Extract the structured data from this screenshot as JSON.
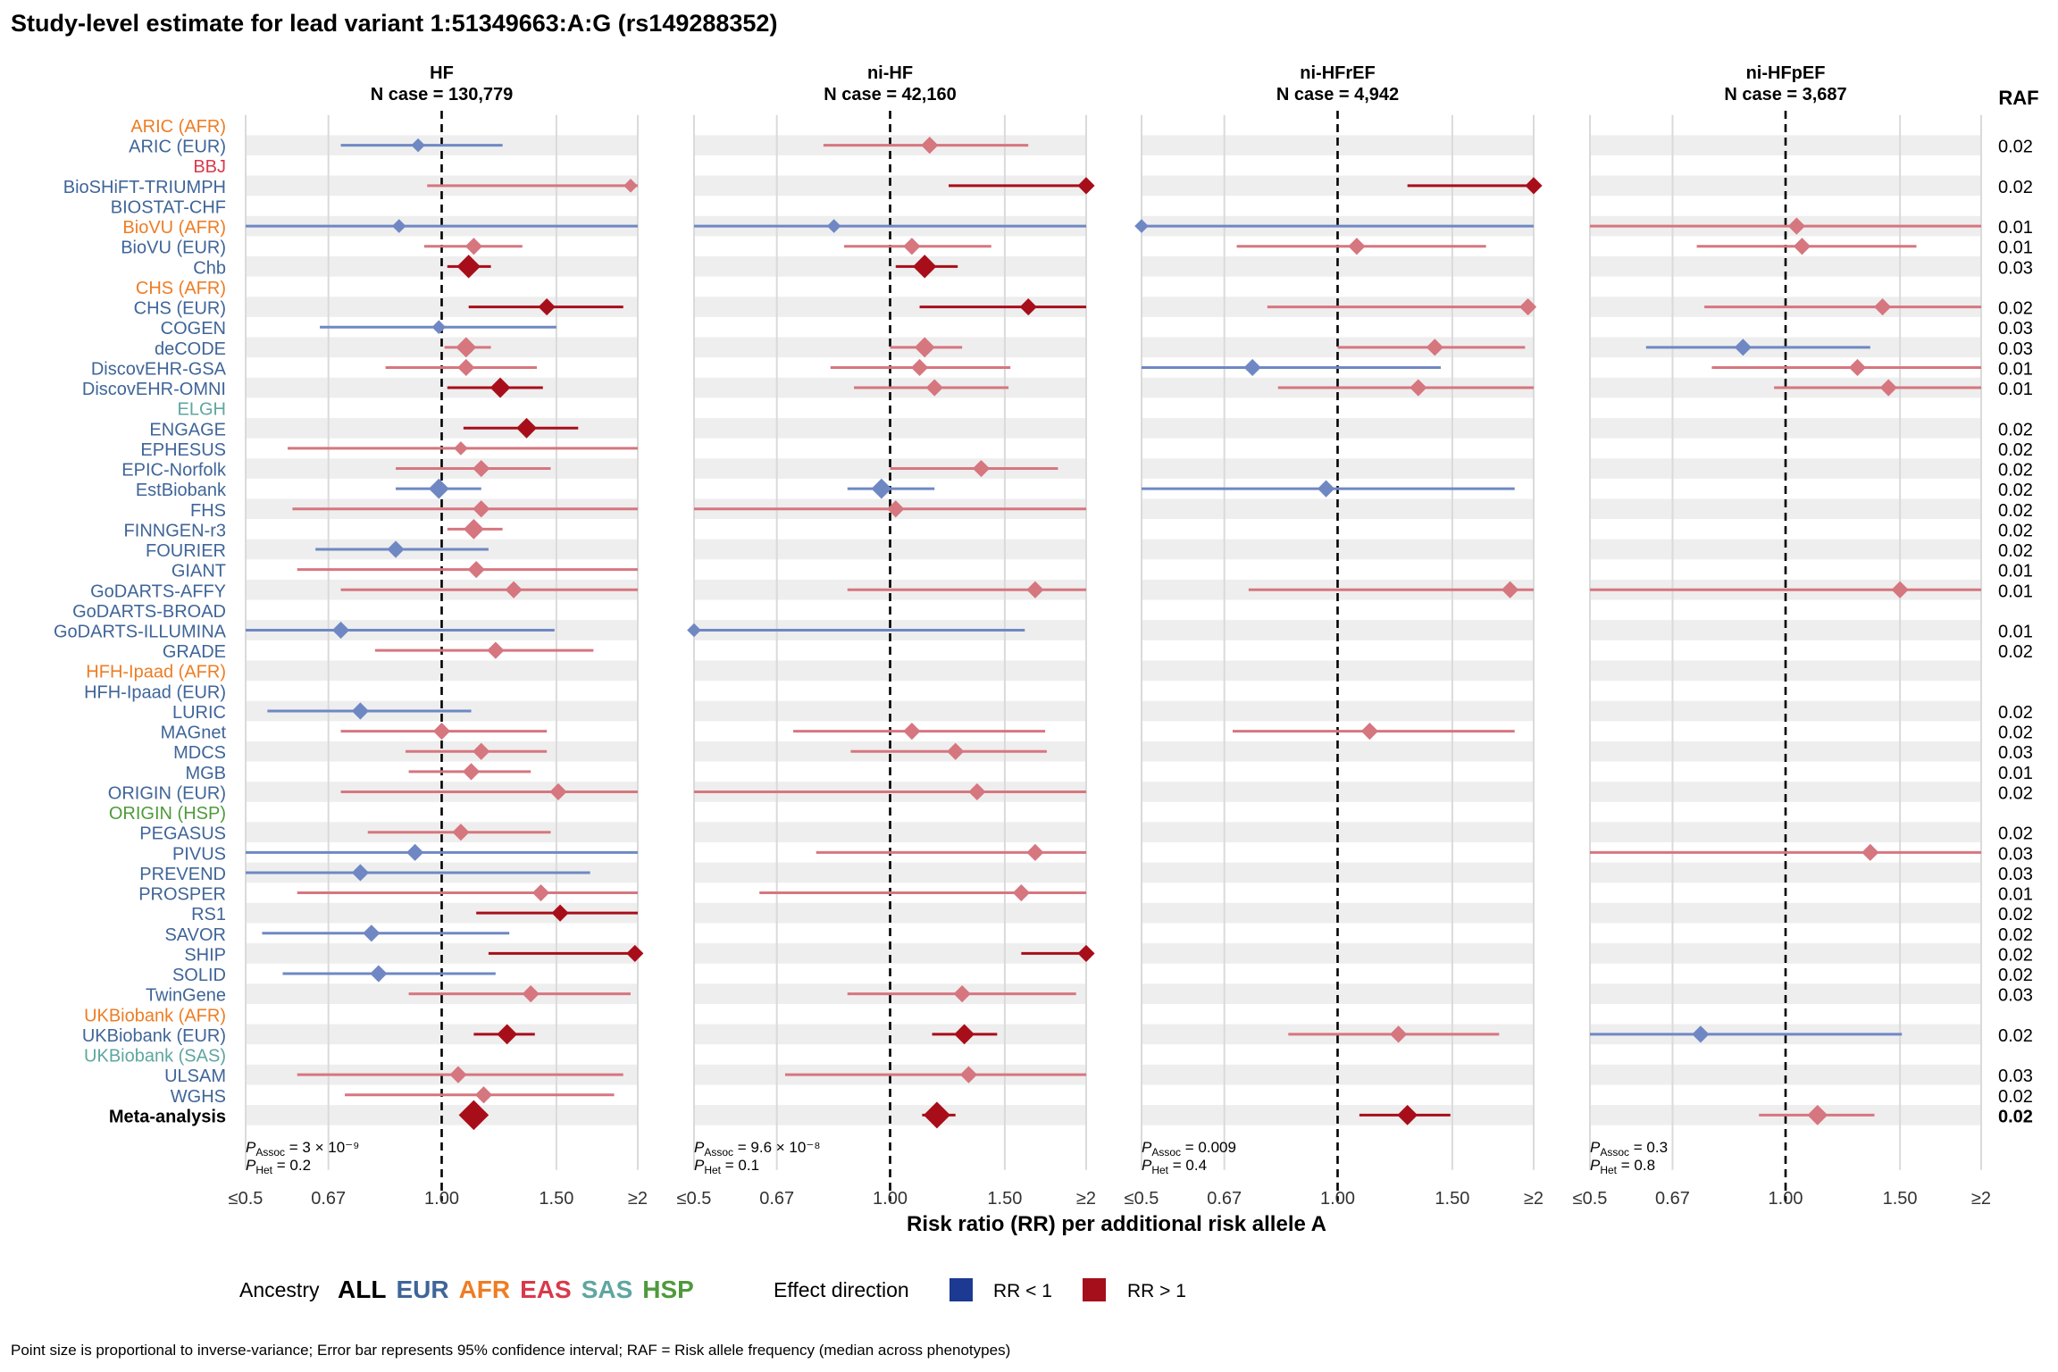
{
  "chart_data": {
    "type": "forest",
    "title": "Study-level estimate for lead variant 1:51349663:A:G (rs149288352)",
    "xlabel": "Risk ratio (RR) per additional risk allele A",
    "x_scale": "log",
    "xlim": [
      0.5,
      2
    ],
    "x_ticks": [
      "≤0.5",
      "0.67",
      "1.00",
      "1.50",
      "≥2"
    ],
    "x_tick_values": [
      0.5,
      0.67,
      1.0,
      1.5,
      2.0
    ],
    "raf_header": "RAF",
    "studies": [
      {
        "name": "ARIC (AFR)",
        "ancestry": "AFR"
      },
      {
        "name": "ARIC (EUR)",
        "ancestry": "EUR"
      },
      {
        "name": "BBJ",
        "ancestry": "EAS"
      },
      {
        "name": "BioSHiFT-TRIUMPH",
        "ancestry": "EUR"
      },
      {
        "name": "BIOSTAT-CHF",
        "ancestry": "EUR"
      },
      {
        "name": "BioVU (AFR)",
        "ancestry": "AFR"
      },
      {
        "name": "BioVU (EUR)",
        "ancestry": "EUR"
      },
      {
        "name": "Chb",
        "ancestry": "EUR"
      },
      {
        "name": "CHS (AFR)",
        "ancestry": "AFR"
      },
      {
        "name": "CHS (EUR)",
        "ancestry": "EUR"
      },
      {
        "name": "COGEN",
        "ancestry": "EUR"
      },
      {
        "name": "deCODE",
        "ancestry": "EUR"
      },
      {
        "name": "DiscovEHR-GSA",
        "ancestry": "EUR"
      },
      {
        "name": "DiscovEHR-OMNI",
        "ancestry": "EUR"
      },
      {
        "name": "ELGH",
        "ancestry": "SAS"
      },
      {
        "name": "ENGAGE",
        "ancestry": "EUR"
      },
      {
        "name": "EPHESUS",
        "ancestry": "EUR"
      },
      {
        "name": "EPIC-Norfolk",
        "ancestry": "EUR"
      },
      {
        "name": "EstBiobank",
        "ancestry": "EUR"
      },
      {
        "name": "FHS",
        "ancestry": "EUR"
      },
      {
        "name": "FINNGEN-r3",
        "ancestry": "EUR"
      },
      {
        "name": "FOURIER",
        "ancestry": "EUR"
      },
      {
        "name": "GIANT",
        "ancestry": "EUR"
      },
      {
        "name": "GoDARTS-AFFY",
        "ancestry": "EUR"
      },
      {
        "name": "GoDARTS-BROAD",
        "ancestry": "EUR"
      },
      {
        "name": "GoDARTS-ILLUMINA",
        "ancestry": "EUR"
      },
      {
        "name": "GRADE",
        "ancestry": "EUR"
      },
      {
        "name": "HFH-Ipaad (AFR)",
        "ancestry": "AFR"
      },
      {
        "name": "HFH-Ipaad (EUR)",
        "ancestry": "EUR"
      },
      {
        "name": "LURIC",
        "ancestry": "EUR"
      },
      {
        "name": "MAGnet",
        "ancestry": "EUR"
      },
      {
        "name": "MDCS",
        "ancestry": "EUR"
      },
      {
        "name": "MGB",
        "ancestry": "EUR"
      },
      {
        "name": "ORIGIN (EUR)",
        "ancestry": "EUR"
      },
      {
        "name": "ORIGIN (HSP)",
        "ancestry": "HSP"
      },
      {
        "name": "PEGASUS",
        "ancestry": "EUR"
      },
      {
        "name": "PIVUS",
        "ancestry": "EUR"
      },
      {
        "name": "PREVEND",
        "ancestry": "EUR"
      },
      {
        "name": "PROSPER",
        "ancestry": "EUR"
      },
      {
        "name": "RS1",
        "ancestry": "EUR"
      },
      {
        "name": "SAVOR",
        "ancestry": "EUR"
      },
      {
        "name": "SHIP",
        "ancestry": "EUR"
      },
      {
        "name": "SOLID",
        "ancestry": "EUR"
      },
      {
        "name": "TwinGene",
        "ancestry": "EUR"
      },
      {
        "name": "UKBiobank (AFR)",
        "ancestry": "AFR"
      },
      {
        "name": "UKBiobank (EUR)",
        "ancestry": "EUR"
      },
      {
        "name": "UKBiobank (SAS)",
        "ancestry": "SAS"
      },
      {
        "name": "ULSAM",
        "ancestry": "EUR"
      },
      {
        "name": "WGHS",
        "ancestry": "EUR"
      },
      {
        "name": "Meta-analysis",
        "ancestry": "ALL"
      }
    ],
    "raf": [
      "",
      "0.02",
      "",
      "0.02",
      "",
      "0.01",
      "0.01",
      "0.03",
      "",
      "0.02",
      "0.03",
      "0.03",
      "0.01",
      "0.01",
      "",
      "0.02",
      "0.02",
      "0.02",
      "0.02",
      "0.02",
      "0.02",
      "0.02",
      "0.01",
      "0.01",
      "",
      "0.01",
      "0.02",
      "",
      "",
      "0.02",
      "0.02",
      "0.03",
      "0.01",
      "0.02",
      "",
      "0.02",
      "0.03",
      "0.03",
      "0.01",
      "0.02",
      "0.02",
      "0.02",
      "0.02",
      "0.03",
      "",
      "0.02",
      "",
      "0.03",
      "0.02",
      "0.02"
    ],
    "panels": [
      {
        "name": "HF",
        "n_case": "N case = 130,779",
        "p_assoc": "3 × 10⁻⁹",
        "p_het": "0.2",
        "points": [
          null,
          {
            "rr": 0.92,
            "lo": 0.7,
            "hi": 1.24,
            "s": 1
          },
          null,
          {
            "rr": 1.95,
            "lo": 0.95,
            "hi": 2.0,
            "s": 1
          },
          null,
          {
            "rr": 0.86,
            "lo": 0.5,
            "hi": 2.0,
            "s": 1
          },
          {
            "rr": 1.12,
            "lo": 0.94,
            "hi": 1.33,
            "s": 2
          },
          {
            "rr": 1.1,
            "lo": 1.02,
            "hi": 1.19,
            "s": 4,
            "sig": true
          },
          null,
          {
            "rr": 1.45,
            "lo": 1.1,
            "hi": 1.9,
            "s": 2,
            "sig": true
          },
          {
            "rr": 0.99,
            "lo": 0.65,
            "hi": 1.5,
            "s": 1
          },
          {
            "rr": 1.09,
            "lo": 1.01,
            "hi": 1.19,
            "s": 3
          },
          {
            "rr": 1.09,
            "lo": 0.82,
            "hi": 1.4,
            "s": 2
          },
          {
            "rr": 1.23,
            "lo": 1.02,
            "hi": 1.43,
            "s": 3,
            "sig": true
          },
          null,
          {
            "rr": 1.35,
            "lo": 1.08,
            "hi": 1.62,
            "s": 3,
            "sig": true
          },
          {
            "rr": 1.07,
            "lo": 0.58,
            "hi": 2.0,
            "s": 1
          },
          {
            "rr": 1.15,
            "lo": 0.85,
            "hi": 1.47,
            "s": 2
          },
          {
            "rr": 0.99,
            "lo": 0.85,
            "hi": 1.15,
            "s": 3
          },
          {
            "rr": 1.15,
            "lo": 0.59,
            "hi": 2.0,
            "s": 2
          },
          {
            "rr": 1.12,
            "lo": 1.02,
            "hi": 1.24,
            "s": 3
          },
          {
            "rr": 0.85,
            "lo": 0.64,
            "hi": 1.18,
            "s": 2
          },
          {
            "rr": 1.13,
            "lo": 0.6,
            "hi": 2.0,
            "s": 2
          },
          {
            "rr": 1.29,
            "lo": 0.7,
            "hi": 2.0,
            "s": 2
          },
          null,
          {
            "rr": 0.7,
            "lo": 0.5,
            "hi": 1.49,
            "s": 2
          },
          {
            "rr": 1.21,
            "lo": 0.79,
            "hi": 1.71,
            "s": 2
          },
          null,
          null,
          {
            "rr": 0.75,
            "lo": 0.54,
            "hi": 1.11,
            "s": 2
          },
          {
            "rr": 1.0,
            "lo": 0.7,
            "hi": 1.45,
            "s": 2
          },
          {
            "rr": 1.15,
            "lo": 0.88,
            "hi": 1.45,
            "s": 2
          },
          {
            "rr": 1.11,
            "lo": 0.89,
            "hi": 1.37,
            "s": 2
          },
          {
            "rr": 1.51,
            "lo": 0.7,
            "hi": 2.0,
            "s": 2
          },
          null,
          {
            "rr": 1.07,
            "lo": 0.77,
            "hi": 1.47,
            "s": 2
          },
          {
            "rr": 0.91,
            "lo": 0.5,
            "hi": 2.0,
            "s": 2
          },
          {
            "rr": 0.75,
            "lo": 0.5,
            "hi": 1.69,
            "s": 2
          },
          {
            "rr": 1.42,
            "lo": 0.6,
            "hi": 2.0,
            "s": 2
          },
          {
            "rr": 1.52,
            "lo": 1.13,
            "hi": 2.0,
            "s": 2,
            "sig": true
          },
          {
            "rr": 0.78,
            "lo": 0.53,
            "hi": 1.27,
            "s": 2
          },
          {
            "rr": 1.98,
            "lo": 1.18,
            "hi": 2.0,
            "s": 2,
            "sig": true
          },
          {
            "rr": 0.8,
            "lo": 0.57,
            "hi": 1.21,
            "s": 2
          },
          {
            "rr": 1.37,
            "lo": 0.89,
            "hi": 1.95,
            "s": 2
          },
          null,
          {
            "rr": 1.26,
            "lo": 1.12,
            "hi": 1.39,
            "s": 3,
            "sig": true
          },
          null,
          {
            "rr": 1.06,
            "lo": 0.6,
            "hi": 1.9,
            "s": 2
          },
          {
            "rr": 1.16,
            "lo": 0.71,
            "hi": 1.84,
            "s": 2
          },
          {
            "rr": 1.12,
            "lo": 1.08,
            "hi": 1.16,
            "s": 6,
            "sig": true,
            "meta": true
          }
        ]
      },
      {
        "name": "ni-HF",
        "n_case": "N case = 42,160",
        "p_assoc": "9.6 × 10⁻⁸",
        "p_het": "0.1",
        "points": [
          null,
          {
            "rr": 1.15,
            "lo": 0.79,
            "hi": 1.63,
            "s": 2
          },
          null,
          {
            "rr": 2.0,
            "lo": 1.23,
            "hi": 2.0,
            "s": 2,
            "sig": true
          },
          null,
          {
            "rr": 0.82,
            "lo": 0.5,
            "hi": 2.0,
            "s": 1
          },
          {
            "rr": 1.08,
            "lo": 0.85,
            "hi": 1.43,
            "s": 2
          },
          {
            "rr": 1.13,
            "lo": 1.02,
            "hi": 1.27,
            "s": 4,
            "sig": true
          },
          null,
          {
            "rr": 1.63,
            "lo": 1.11,
            "hi": 2.0,
            "s": 2,
            "sig": true
          },
          null,
          {
            "rr": 1.13,
            "lo": 1.0,
            "hi": 1.29,
            "s": 3
          },
          {
            "rr": 1.11,
            "lo": 0.81,
            "hi": 1.53,
            "s": 2
          },
          {
            "rr": 1.17,
            "lo": 0.88,
            "hi": 1.52,
            "s": 2
          },
          null,
          null,
          null,
          {
            "rr": 1.38,
            "lo": 1.0,
            "hi": 1.81,
            "s": 2
          },
          {
            "rr": 0.97,
            "lo": 0.86,
            "hi": 1.17,
            "s": 3
          },
          {
            "rr": 1.02,
            "lo": 0.5,
            "hi": 2.0,
            "s": 2
          },
          null,
          null,
          null,
          {
            "rr": 1.67,
            "lo": 0.86,
            "hi": 2.0,
            "s": 2
          },
          null,
          {
            "rr": 0.5,
            "lo": 0.5,
            "hi": 1.61,
            "s": 1
          },
          null,
          null,
          null,
          null,
          {
            "rr": 1.08,
            "lo": 0.71,
            "hi": 1.73,
            "s": 2
          },
          {
            "rr": 1.26,
            "lo": 0.87,
            "hi": 1.74,
            "s": 2
          },
          null,
          {
            "rr": 1.36,
            "lo": 0.5,
            "hi": 2.0,
            "s": 2
          },
          null,
          null,
          {
            "rr": 1.67,
            "lo": 0.77,
            "hi": 2.0,
            "s": 2
          },
          null,
          {
            "rr": 1.59,
            "lo": 0.63,
            "hi": 2.0,
            "s": 2
          },
          null,
          null,
          {
            "rr": 2.0,
            "lo": 1.59,
            "hi": 2.0,
            "s": 2,
            "sig": true
          },
          null,
          {
            "rr": 1.29,
            "lo": 0.86,
            "hi": 1.93,
            "s": 2
          },
          null,
          {
            "rr": 1.3,
            "lo": 1.16,
            "hi": 1.46,
            "s": 3,
            "sig": true
          },
          null,
          {
            "rr": 1.32,
            "lo": 0.69,
            "hi": 2.0,
            "s": 2
          },
          null,
          {
            "rr": 1.18,
            "lo": 1.12,
            "hi": 1.26,
            "s": 5,
            "sig": true,
            "meta": true
          }
        ]
      },
      {
        "name": "ni-HFrEF",
        "n_case": "N case = 4,942",
        "p_assoc": "0.009",
        "p_het": "0.4",
        "points": [
          null,
          null,
          null,
          {
            "rr": 2.0,
            "lo": 1.28,
            "hi": 2.0,
            "s": 2,
            "sig": true
          },
          null,
          {
            "rr": 0.5,
            "lo": 0.5,
            "hi": 2.0,
            "s": 1
          },
          {
            "rr": 1.07,
            "lo": 0.7,
            "hi": 1.69,
            "s": 2
          },
          null,
          null,
          {
            "rr": 1.96,
            "lo": 0.78,
            "hi": 2.0,
            "s": 2
          },
          null,
          {
            "rr": 1.41,
            "lo": 1.0,
            "hi": 1.94,
            "s": 2
          },
          {
            "rr": 0.74,
            "lo": 0.5,
            "hi": 1.44,
            "s": 2
          },
          {
            "rr": 1.33,
            "lo": 0.81,
            "hi": 2.0,
            "s": 2
          },
          null,
          null,
          null,
          null,
          {
            "rr": 0.96,
            "lo": 0.5,
            "hi": 1.87,
            "s": 2
          },
          null,
          null,
          null,
          null,
          {
            "rr": 1.84,
            "lo": 0.73,
            "hi": 2.0,
            "s": 2
          },
          null,
          null,
          null,
          null,
          null,
          null,
          {
            "rr": 1.12,
            "lo": 0.69,
            "hi": 1.87,
            "s": 2
          },
          null,
          null,
          null,
          null,
          null,
          null,
          null,
          null,
          null,
          null,
          null,
          null,
          null,
          null,
          {
            "rr": 1.24,
            "lo": 0.84,
            "hi": 1.77,
            "s": 2
          },
          null,
          null,
          null,
          {
            "rr": 1.28,
            "lo": 1.08,
            "hi": 1.49,
            "s": 3,
            "sig": true,
            "meta": true
          }
        ]
      },
      {
        "name": "ni-HFpEF",
        "n_case": "N case = 3,687",
        "p_assoc": "0.3",
        "p_het": "0.8",
        "points": [
          null,
          null,
          null,
          null,
          null,
          {
            "rr": 1.04,
            "lo": 0.5,
            "hi": 2.0,
            "s": 2
          },
          {
            "rr": 1.06,
            "lo": 0.73,
            "hi": 1.59,
            "s": 2
          },
          null,
          null,
          {
            "rr": 1.41,
            "lo": 0.75,
            "hi": 2.0,
            "s": 2
          },
          null,
          {
            "rr": 0.86,
            "lo": 0.61,
            "hi": 1.35,
            "s": 2
          },
          {
            "rr": 1.29,
            "lo": 0.77,
            "hi": 2.0,
            "s": 2
          },
          {
            "rr": 1.44,
            "lo": 0.96,
            "hi": 2.0,
            "s": 2
          },
          null,
          null,
          null,
          null,
          null,
          null,
          null,
          null,
          null,
          {
            "rr": 1.5,
            "lo": 0.5,
            "hi": 2.0,
            "s": 2
          },
          null,
          null,
          null,
          null,
          null,
          null,
          null,
          null,
          null,
          null,
          null,
          null,
          {
            "rr": 1.35,
            "lo": 0.5,
            "hi": 2.0,
            "s": 2
          },
          null,
          null,
          null,
          null,
          null,
          null,
          null,
          null,
          {
            "rr": 0.74,
            "lo": 0.5,
            "hi": 1.51,
            "s": 2
          },
          null,
          null,
          null,
          {
            "rr": 1.12,
            "lo": 0.91,
            "hi": 1.37,
            "s": 3,
            "meta": true
          }
        ]
      }
    ],
    "legend": {
      "ancestry_label": "Ancestry",
      "ancestry_items": [
        "ALL",
        "EUR",
        "AFR",
        "EAS",
        "SAS",
        "HSP"
      ],
      "effect_label": "Effect direction",
      "effect_items": [
        "RR < 1",
        "RR > 1"
      ]
    },
    "colors": {
      "EUR": "#3f6598",
      "AFR": "#ee7d24",
      "EAS": "#d9394b",
      "SAS": "#5ea6a0",
      "HSP": "#4e9a3b",
      "ALL": "#000000",
      "rr_lt1": "#6f88c4",
      "rr_lt1_sig": "#1b3a8f",
      "rr_gt1": "#d6767f",
      "rr_gt1_sig": "#a80e1a",
      "legend_lt1": "#1c3a92",
      "legend_gt1": "#a50f1b",
      "stripe": "#eeeeee",
      "grid": "#dadada"
    },
    "footnote": "Point size is proportional to inverse-variance; Error bar represents 95% confidence interval; RAF = Risk allele frequency (median across phenotypes)"
  }
}
